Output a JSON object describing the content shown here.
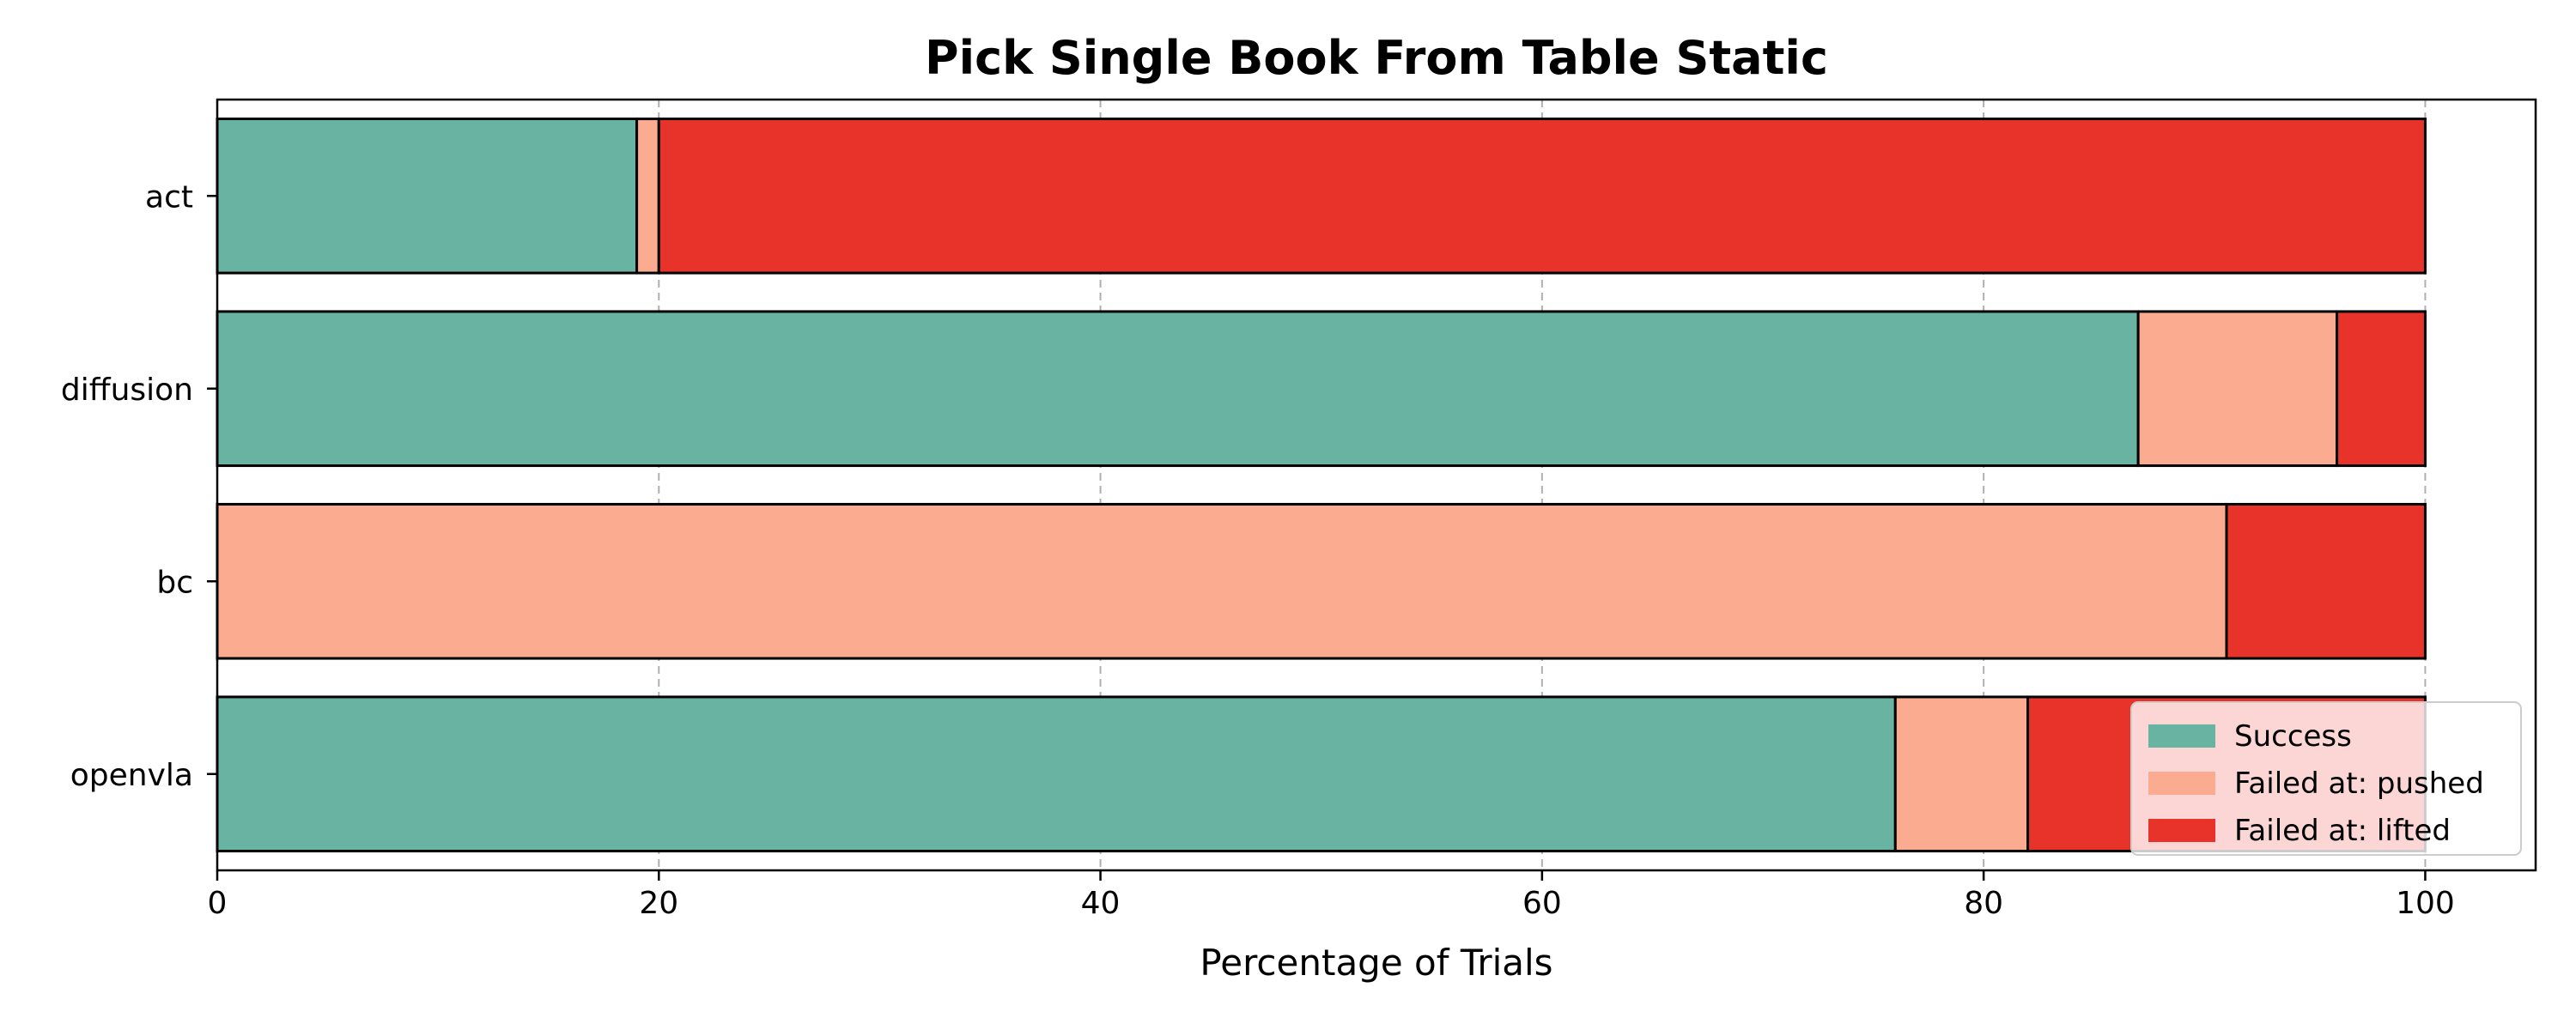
{
  "chart_data": {
    "type": "bar",
    "orientation": "horizontal",
    "stacked": true,
    "title": "Pick Single Book From Table Static",
    "xlabel": "Percentage of Trials",
    "ylabel": "",
    "xlim": [
      0,
      105
    ],
    "xticks": [
      0,
      20,
      40,
      60,
      80,
      100
    ],
    "grid": "x-dashed",
    "legend_position": "lower-right",
    "categories": [
      "act",
      "diffusion",
      "bc",
      "openvla"
    ],
    "series": [
      {
        "name": "Success",
        "color": "#69b3a2",
        "values": [
          19,
          87,
          0,
          76
        ]
      },
      {
        "name": "Failed at: pushed",
        "color": "#fbab8f",
        "values": [
          1,
          9,
          91,
          6
        ]
      },
      {
        "name": "Failed at: lifted",
        "color": "#e8332a",
        "values": [
          80,
          4,
          9,
          18
        ]
      }
    ]
  }
}
